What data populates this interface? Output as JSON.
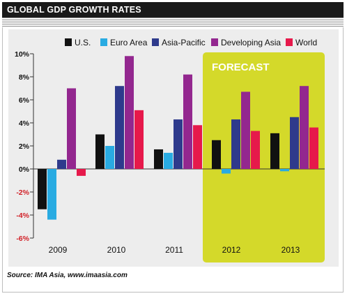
{
  "header": {
    "title": "GLOBAL GDP GROWTH RATES"
  },
  "source": "Source: IMA Asia, www.imaasia.com",
  "colors": {
    "U.S.": "#111111",
    "Euro Area": "#29abe2",
    "Asia-Pacific": "#2e3a8c",
    "Developing Asia": "#93278f",
    "World": "#e6194b",
    "forecast_bg": "#d4d92a",
    "negative_tick": "#d11f26"
  },
  "chart_data": {
    "type": "bar",
    "title": "GLOBAL GDP GROWTH RATES",
    "categories": [
      "2009",
      "2010",
      "2011",
      "2012",
      "2013"
    ],
    "series": [
      {
        "name": "U.S.",
        "values": [
          -3.5,
          3.0,
          1.7,
          2.5,
          3.1
        ]
      },
      {
        "name": "Euro Area",
        "values": [
          -4.4,
          2.0,
          1.4,
          -0.4,
          -0.2
        ]
      },
      {
        "name": "Asia-Pacific",
        "values": [
          0.8,
          7.2,
          4.3,
          4.3,
          4.5
        ]
      },
      {
        "name": "Developing Asia",
        "values": [
          7.0,
          9.8,
          8.2,
          6.7,
          7.2
        ]
      },
      {
        "name": "World",
        "values": [
          -0.6,
          5.1,
          3.8,
          3.3,
          3.6
        ]
      }
    ],
    "ylim": [
      -6,
      10
    ],
    "yticks": [
      10,
      8,
      6,
      4,
      2,
      0,
      -2,
      -4,
      -6
    ],
    "ytick_labels": [
      "10%",
      "8%",
      "6%",
      "4%",
      "2%",
      "0%",
      "-2%",
      "-4%",
      "-6%"
    ],
    "forecast_label": "FORECAST",
    "forecast_categories": [
      "2012",
      "2013"
    ],
    "legend_position": "top",
    "grid": false
  }
}
